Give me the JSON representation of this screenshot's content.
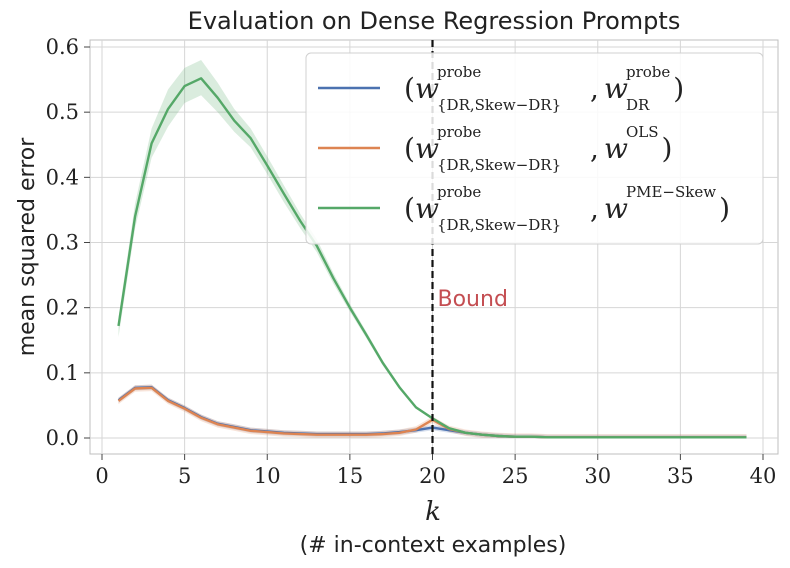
{
  "chart_data": {
    "type": "line",
    "title": "Evaluation on Dense Regression Prompts",
    "xlabel": "k",
    "xlabel_sub": "(# in-context examples)",
    "ylabel": "mean squared error",
    "xlim": [
      0,
      40
    ],
    "ylim": [
      0,
      0.6
    ],
    "xticks": [
      0,
      5,
      10,
      15,
      20,
      25,
      30,
      35,
      40
    ],
    "yticks": [
      0.0,
      0.1,
      0.2,
      0.3,
      0.4,
      0.5,
      0.6
    ],
    "ytick_labels": [
      "0.0",
      "0.1",
      "0.2",
      "0.3",
      "0.4",
      "0.5",
      "0.6"
    ],
    "grid": true,
    "legend_position": "top-right",
    "annotation": {
      "text": "Bound",
      "x": 20,
      "color": "#c44e52"
    },
    "vline_x": 20,
    "x": [
      1,
      2,
      3,
      4,
      5,
      6,
      7,
      8,
      9,
      10,
      11,
      12,
      13,
      14,
      15,
      16,
      17,
      18,
      19,
      20,
      21,
      22,
      23,
      24,
      25,
      26,
      27,
      28,
      29,
      30,
      31,
      32,
      33,
      34,
      35,
      36,
      37,
      38,
      39
    ],
    "series": [
      {
        "name": "(w^{probe}_{DR,Skew-DR}, w^{probe}_{DR})",
        "legend": {
          "open": "(",
          "w1": "w",
          "sup1": "probe",
          "sub1": "{DR,Skew−DR}",
          "comma": ",",
          "w2": "w",
          "sup2": "probe",
          "sub2": "DR",
          "close": ")"
        },
        "color": "#4c72b0",
        "values": [
          0.058,
          0.077,
          0.078,
          0.058,
          0.046,
          0.032,
          0.022,
          0.017,
          0.012,
          0.01,
          0.008,
          0.007,
          0.006,
          0.006,
          0.006,
          0.006,
          0.007,
          0.009,
          0.012,
          0.016,
          0.012,
          0.008,
          0.005,
          0.003,
          0.002,
          0.002,
          0.001,
          0.001,
          0.001,
          0.001,
          0.001,
          0.001,
          0.001,
          0.001,
          0.001,
          0.001,
          0.001,
          0.001,
          0.001
        ],
        "band": 0.004
      },
      {
        "name": "(w^{probe}_{DR,Skew-DR}, w^{OLS})",
        "legend": {
          "open": "(",
          "w1": "w",
          "sup1": "probe",
          "sub1": "{DR,Skew−DR}",
          "comma": ",",
          "w2": "w",
          "sup2": "OLS",
          "sub2": "",
          "close": ")"
        },
        "color": "#dd8452",
        "values": [
          0.057,
          0.076,
          0.077,
          0.057,
          0.045,
          0.031,
          0.021,
          0.016,
          0.011,
          0.009,
          0.007,
          0.006,
          0.005,
          0.005,
          0.005,
          0.005,
          0.006,
          0.008,
          0.013,
          0.028,
          0.014,
          0.008,
          0.005,
          0.003,
          0.002,
          0.002,
          0.001,
          0.001,
          0.001,
          0.001,
          0.001,
          0.001,
          0.001,
          0.001,
          0.001,
          0.001,
          0.001,
          0.001,
          0.001
        ],
        "band": 0.005
      },
      {
        "name": "(w^{probe}_{DR,Skew-DR}, w^{PME-Skew})",
        "legend": {
          "open": "(",
          "w1": "w",
          "sup1": "probe",
          "sub1": "{DR,Skew−DR}",
          "comma": ",",
          "w2": "w",
          "sup2": "PME−Skew",
          "sub2": "",
          "close": ")"
        },
        "color": "#55a868",
        "values": [
          0.172,
          0.34,
          0.452,
          0.505,
          0.54,
          0.552,
          0.522,
          0.487,
          0.46,
          0.418,
          0.375,
          0.333,
          0.295,
          0.245,
          0.2,
          0.158,
          0.115,
          0.078,
          0.047,
          0.03,
          0.015,
          0.008,
          0.005,
          0.003,
          0.002,
          0.002,
          0.001,
          0.001,
          0.001,
          0.001,
          0.001,
          0.001,
          0.001,
          0.001,
          0.001,
          0.001,
          0.001,
          0.001,
          0.001
        ],
        "band_upper": [
          0.185,
          0.36,
          0.475,
          0.535,
          0.568,
          0.58,
          0.545,
          0.505,
          0.475,
          0.432,
          0.388,
          0.344,
          0.305,
          0.253,
          0.206,
          0.163,
          0.119,
          0.081,
          0.049,
          0.032,
          0.016,
          0.009,
          0.006,
          0.004,
          0.003,
          0.002,
          0.002,
          0.001,
          0.001,
          0.001,
          0.001,
          0.001,
          0.001,
          0.001,
          0.001,
          0.001,
          0.001,
          0.001,
          0.001
        ],
        "band_lower": [
          0.155,
          0.322,
          0.43,
          0.478,
          0.514,
          0.526,
          0.5,
          0.47,
          0.446,
          0.405,
          0.362,
          0.322,
          0.285,
          0.237,
          0.194,
          0.153,
          0.111,
          0.075,
          0.045,
          0.028,
          0.014,
          0.007,
          0.004,
          0.002,
          0.001,
          0.001,
          0.001,
          0.0,
          0.0,
          0.0,
          0.0,
          0.0,
          0.0,
          0.0,
          0.0,
          0.0,
          0.0,
          0.0,
          0.0
        ]
      }
    ]
  }
}
